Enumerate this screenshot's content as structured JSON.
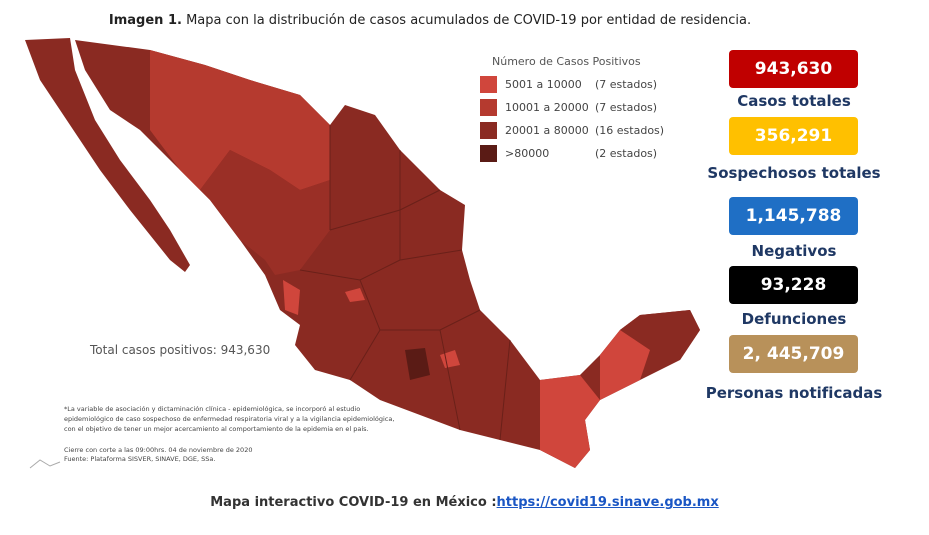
{
  "header": {
    "title_bold": "Imagen 1.",
    "title": "Mapa con la distribución de casos acumulados de COVID-19 por entidad de residencia."
  },
  "legend": {
    "title": "Número de Casos Positivos",
    "items": [
      {
        "range": "5001 a  10000",
        "count": "(7 estados)",
        "color": "#d0463c"
      },
      {
        "range": "10001 a  20000",
        "count": "(7 estados)",
        "color": "#b53a2f"
      },
      {
        "range": "20001 a  80000",
        "count": "(16 estados)",
        "color": "#8a2a22"
      },
      {
        "range": ">80000",
        "count": "(2 estados)",
        "color": "#5a1b15"
      }
    ]
  },
  "stats": [
    {
      "value": "943,630",
      "label": "Casos totales",
      "color": "#c00000"
    },
    {
      "value": "356,291",
      "label": "Sospechosos totales",
      "color": "#ffc000"
    },
    {
      "value": "1,145,788",
      "label": "Negativos",
      "color": "#1f6fc5"
    },
    {
      "value": "93,228",
      "label": "Defunciones",
      "color": "#000000"
    },
    {
      "value": "2, 445,709",
      "label": "Personas notificadas",
      "color": "#b8915a"
    }
  ],
  "map": {
    "total_label": "Total casos positivos: 943,630",
    "notes": [
      "*La variable de asociación y dictaminación clínica - epidemiológica, se incorporó al estudio",
      "epidemiológico de caso sospechoso de enfermedad respiratoria viral y a la vigilancia epidemiológica,",
      "con el objetivo de tener un mejor acercamiento al comportamiento de la epidemia en el país.",
      "Cierre con corte a las 09:00hrs. 04 de noviembre de 2020",
      "Fuente: Plataforma SISVER, SINAVE, DGE, SSa."
    ]
  },
  "footer": {
    "text": "Mapa interactivo COVID-19 en México :",
    "link": "https://covid19.sinave.gob.mx"
  }
}
